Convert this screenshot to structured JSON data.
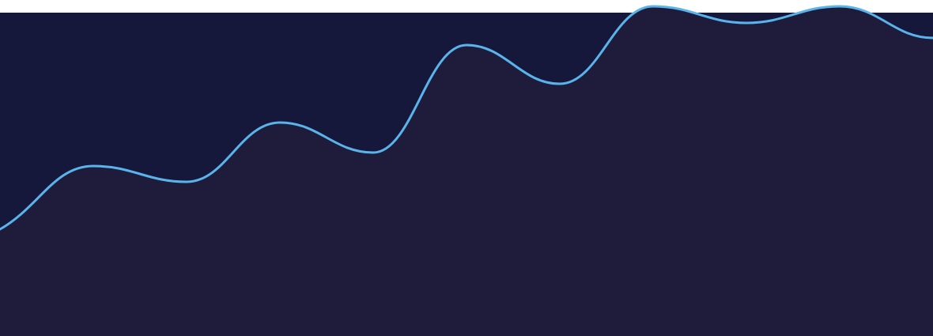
{
  "colors": {
    "page_background": "#ffffff",
    "plot_background": "#15183a",
    "area_fill": "#1e1c3a",
    "line_stroke": "#5ab4ec"
  },
  "chart_data": {
    "type": "area",
    "x": [
      0,
      1,
      2,
      3,
      4,
      5,
      6,
      7,
      8,
      9,
      10
    ],
    "series": [
      {
        "values": [
          135,
          215,
          195,
          270,
          232,
          368,
          319,
          417,
          396,
          417,
          377
        ]
      }
    ],
    "xlim": [
      0,
      10
    ],
    "ylim": [
      0,
      425
    ],
    "grid": false,
    "legend": "none",
    "axes_visible": false
  }
}
